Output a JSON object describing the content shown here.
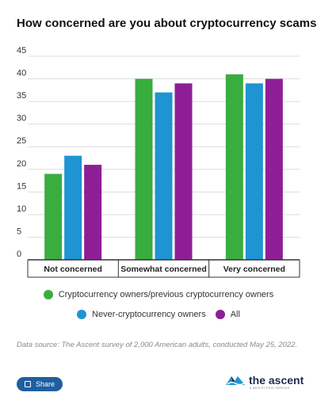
{
  "chart_data": {
    "type": "bar",
    "title": "How concerned are you about cryptocurrency scams?",
    "categories": [
      "Not concerned",
      "Somewhat concerned",
      "Very concerned"
    ],
    "series": [
      {
        "name": "Cryptocurrency owners/previous cryptocurrency owners",
        "color": "#3aad3f",
        "values": [
          19,
          40,
          41
        ]
      },
      {
        "name": "Never-cryptocurrency owners",
        "color": "#1e94d2",
        "values": [
          23,
          37,
          39
        ]
      },
      {
        "name": "All",
        "color": "#8e1e96",
        "values": [
          21,
          39,
          40
        ]
      }
    ],
    "yticks": [
      "0",
      "5",
      "10",
      "15",
      "20",
      "25",
      "30",
      "35",
      "40",
      "45"
    ],
    "ylim": [
      0,
      45
    ],
    "grid": true,
    "legend": "bottom"
  },
  "source_note": "Data source: The Ascent survey of 2,000 American adults, conducted May 25, 2022.",
  "share_label": "Share",
  "brand_name": "the ascent",
  "brand_tagline": "A MOTLEY FOOL SERVICE"
}
